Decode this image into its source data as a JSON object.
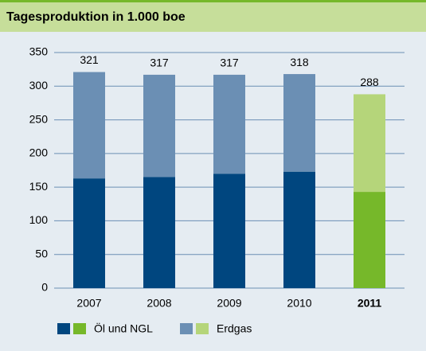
{
  "chart_data": {
    "type": "stacked_bar",
    "title": "Tagesproduktion in 1.000 boe",
    "categories": [
      "2007",
      "2008",
      "2009",
      "2010",
      "2011"
    ],
    "highlight": "2011",
    "series": [
      {
        "name": "Öl und NGL",
        "color": "#00467f",
        "highlight_color": "#76b82a",
        "values": [
          163,
          165,
          170,
          173,
          143
        ]
      },
      {
        "name": "Erdgas",
        "color": "#6b8fb4",
        "highlight_color": "#b5d57a",
        "values": [
          158,
          152,
          147,
          145,
          145
        ]
      }
    ],
    "totals": [
      321,
      317,
      317,
      318,
      288
    ],
    "ylim": [
      0,
      350
    ],
    "yticks": [
      0,
      50,
      100,
      150,
      200,
      250,
      300,
      350
    ],
    "grid": true
  }
}
